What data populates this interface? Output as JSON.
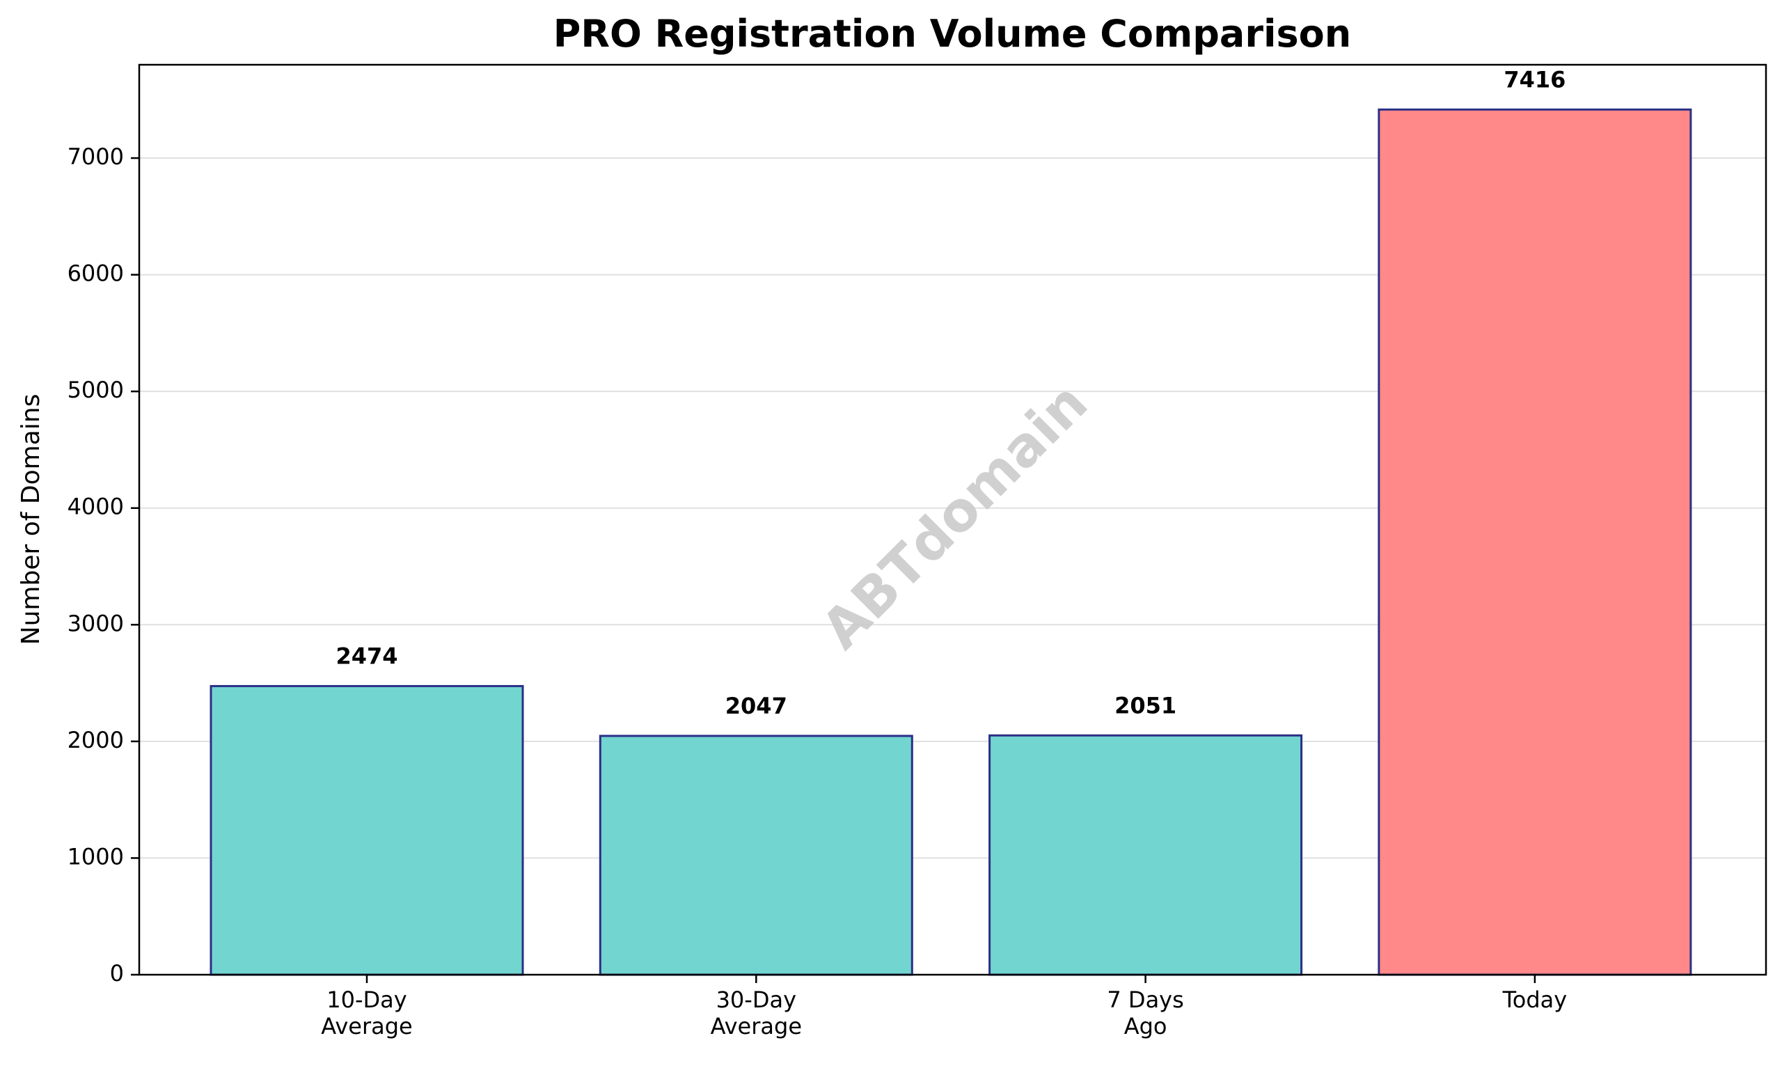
{
  "chart_data": {
    "type": "bar",
    "title": "PRO Registration Volume Comparison",
    "xlabel": "",
    "ylabel": "Number of Domains",
    "categories": [
      [
        "10-Day",
        "Average"
      ],
      [
        "30-Day",
        "Average"
      ],
      [
        "7 Days",
        "Ago"
      ],
      [
        "Today"
      ]
    ],
    "values": [
      2474,
      2047,
      2051,
      7416
    ],
    "value_labels": [
      "2474",
      "2047",
      "2051",
      "7416"
    ],
    "bar_colors": [
      "#72d5d0",
      "#72d5d0",
      "#72d5d0",
      "#ff8888"
    ],
    "bar_edge_color": "#2b2f86",
    "ylim": [
      0,
      7800
    ],
    "yticks": [
      0,
      1000,
      2000,
      3000,
      4000,
      5000,
      6000,
      7000
    ],
    "grid": "horizontal",
    "watermark": "ABTdomain"
  }
}
